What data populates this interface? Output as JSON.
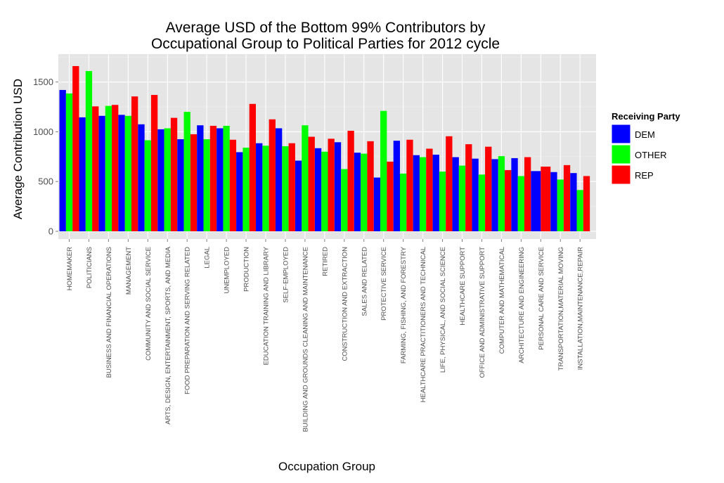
{
  "chart_data": {
    "type": "bar",
    "title_line1": "Average USD of the Bottom 99% Contributors by",
    "title_line2": "Occupational Group to Political Parties for 2012 cycle",
    "xlabel": "Occupation Group",
    "ylabel": "Average Contribution USD",
    "ylim": [
      0,
      1780
    ],
    "yticks": [
      0,
      500,
      1000,
      1500
    ],
    "grid": true,
    "legend_position": "right",
    "legend_title": "Receiving Party",
    "categories": [
      "HOMEMAKER",
      "POLITICIANS",
      "BUSINESS AND FINANCIAL OPERATIONS",
      "MANAGEMENT",
      "COMMUNITY AND SOCIAL SERVICE",
      "ARTS, DESIGN, ENTERTAINMENT, SPORTS, AND MEDIA",
      "FOOD PREPARATION AND SERVING RELATED",
      "LEGAL",
      "UNEMPLOYED",
      "PRODUCTION",
      "EDUCATION TRAINING AND LIBRARY",
      "SELF-EMPLOYED",
      "BUILDING AND GROUNDS CLEANING AND MAINTENANCE",
      "RETIRED",
      "CONSTRUCTION AND EXTRACTION",
      "SALES AND RELATED",
      "PROTECTIVE SERVICE",
      "FARMING, FISHING, AND FORESTRY",
      "HEALTHCARE PRACTITIONERS AND TECHNICAL",
      "LIFE, PHYSICAL, AND SOCIAL SCIENCE",
      "HEALTHCARE SUPPORT",
      "OFFICE AND ADMINISTRATIVE SUPPORT",
      "COMPUTER AND MATHEMATICAL",
      "ARCHITECTURE AND ENGINEERING",
      "PERSONAL CARE AND SERVICE",
      "TRANSPORTATION,MATERIAL MOVING",
      "INSTALLATION,MAINTENANCE,REPAIR"
    ],
    "series": [
      {
        "name": "DEM",
        "color": "#0000ff",
        "values": [
          1420,
          1145,
          1160,
          1170,
          1075,
          1025,
          925,
          1065,
          1035,
          795,
          885,
          1035,
          710,
          835,
          895,
          790,
          540,
          910,
          765,
          770,
          745,
          730,
          725,
          735,
          605,
          595,
          585
        ]
      },
      {
        "name": "OTHER",
        "color": "#00ff00",
        "values": [
          1385,
          1610,
          1260,
          1160,
          915,
          1035,
          1200,
          925,
          1060,
          840,
          860,
          855,
          1065,
          800,
          625,
          780,
          1210,
          580,
          745,
          600,
          660,
          570,
          755,
          555,
          null,
          520,
          415
        ]
      },
      {
        "name": "REP",
        "color": "#ff0000",
        "values": [
          1660,
          1255,
          1270,
          1355,
          1370,
          1140,
          975,
          1060,
          920,
          1280,
          1125,
          885,
          950,
          930,
          1010,
          905,
          700,
          920,
          830,
          955,
          875,
          850,
          615,
          745,
          650,
          665,
          555
        ]
      }
    ]
  }
}
